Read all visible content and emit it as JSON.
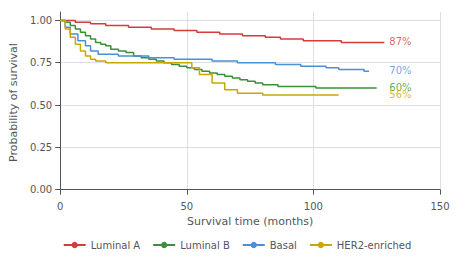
{
  "chart_data": {
    "type": "step",
    "xlabel": "Survival time (months)",
    "ylabel": "Probability of survival",
    "xlim": [
      0,
      150
    ],
    "xticks": [
      0,
      50,
      100,
      150
    ],
    "ylim": [
      -0.02,
      1.05
    ],
    "yticks": [
      {
        "value": 0.0,
        "label": "0.00"
      },
      {
        "value": 0.25,
        "label": "0.25"
      },
      {
        "value": 0.5,
        "label": "0.50"
      },
      {
        "value": 0.75,
        "label": "0.75"
      },
      {
        "value": 1.0,
        "label": "1.00"
      }
    ],
    "grid": true,
    "legend": "bottom",
    "series": [
      {
        "name": "Luminal A",
        "color": "#d63b3b",
        "x": [
          0,
          3,
          6,
          9,
          12,
          15,
          18,
          21,
          24,
          27,
          30,
          33,
          36,
          39,
          42,
          45,
          48,
          51,
          54,
          57,
          60,
          63,
          66,
          69,
          72,
          75,
          78,
          81,
          84,
          87,
          90,
          93,
          96,
          99,
          102,
          105,
          108,
          111,
          114,
          117,
          120,
          123,
          126,
          128
        ],
        "values": [
          1.0,
          1.0,
          0.99,
          0.99,
          0.98,
          0.98,
          0.97,
          0.97,
          0.97,
          0.96,
          0.96,
          0.96,
          0.95,
          0.95,
          0.95,
          0.94,
          0.94,
          0.94,
          0.93,
          0.93,
          0.93,
          0.92,
          0.92,
          0.92,
          0.91,
          0.91,
          0.91,
          0.9,
          0.9,
          0.89,
          0.89,
          0.89,
          0.88,
          0.88,
          0.88,
          0.88,
          0.88,
          0.87,
          0.87,
          0.87,
          0.87,
          0.87,
          0.87,
          0.87
        ]
      },
      {
        "name": "Luminal B",
        "color": "#3b8f3b",
        "x": [
          0,
          2,
          4,
          6,
          8,
          10,
          12,
          14,
          16,
          18,
          20,
          23,
          26,
          29,
          32,
          35,
          38,
          41,
          44,
          47,
          50,
          53,
          56,
          59,
          62,
          65,
          68,
          71,
          74,
          77,
          80,
          83,
          86,
          89,
          92,
          95,
          98,
          101,
          104,
          110,
          116,
          122,
          125
        ],
        "values": [
          1.0,
          0.99,
          0.97,
          0.95,
          0.93,
          0.91,
          0.89,
          0.87,
          0.86,
          0.85,
          0.83,
          0.82,
          0.81,
          0.79,
          0.78,
          0.77,
          0.76,
          0.75,
          0.74,
          0.73,
          0.72,
          0.71,
          0.7,
          0.69,
          0.68,
          0.67,
          0.66,
          0.65,
          0.64,
          0.63,
          0.62,
          0.62,
          0.61,
          0.61,
          0.61,
          0.61,
          0.61,
          0.6,
          0.6,
          0.6,
          0.6,
          0.6,
          0.6
        ]
      },
      {
        "name": "Basal",
        "color": "#4a90d9",
        "x": [
          0,
          2,
          4,
          7,
          10,
          12,
          15,
          18,
          20,
          23,
          26,
          30,
          35,
          40,
          45,
          50,
          55,
          60,
          65,
          70,
          75,
          80,
          85,
          90,
          95,
          100,
          105,
          110,
          115,
          120,
          122
        ],
        "values": [
          1.0,
          0.96,
          0.92,
          0.88,
          0.85,
          0.82,
          0.8,
          0.8,
          0.8,
          0.79,
          0.79,
          0.79,
          0.78,
          0.78,
          0.77,
          0.77,
          0.77,
          0.76,
          0.76,
          0.75,
          0.75,
          0.75,
          0.74,
          0.74,
          0.73,
          0.73,
          0.72,
          0.71,
          0.71,
          0.7,
          0.7
        ]
      },
      {
        "name": "HER2-enriched",
        "color": "#c8a800",
        "x": [
          0,
          2,
          4,
          6,
          8,
          10,
          12,
          14,
          16,
          18,
          20,
          23,
          26,
          30,
          35,
          40,
          45,
          50,
          52,
          55,
          60,
          65,
          70,
          75,
          80,
          85,
          90,
          100,
          110
        ],
        "values": [
          1.0,
          0.95,
          0.9,
          0.86,
          0.82,
          0.79,
          0.77,
          0.76,
          0.76,
          0.75,
          0.75,
          0.75,
          0.75,
          0.75,
          0.75,
          0.75,
          0.75,
          0.75,
          0.72,
          0.68,
          0.63,
          0.59,
          0.57,
          0.57,
          0.56,
          0.56,
          0.56,
          0.56,
          0.56
        ]
      }
    ],
    "annotations": [
      {
        "text": "87%",
        "x": 130,
        "y": 0.875,
        "color": "#d63b3b"
      },
      {
        "text": "70%",
        "x": 130,
        "y": 0.705,
        "color": "#4a90d9"
      },
      {
        "text": "60%",
        "x": 130,
        "y": 0.605,
        "color": "#3b8f3b"
      },
      {
        "text": "56%",
        "x": 130,
        "y": 0.565,
        "color": "#c8a800"
      }
    ]
  }
}
